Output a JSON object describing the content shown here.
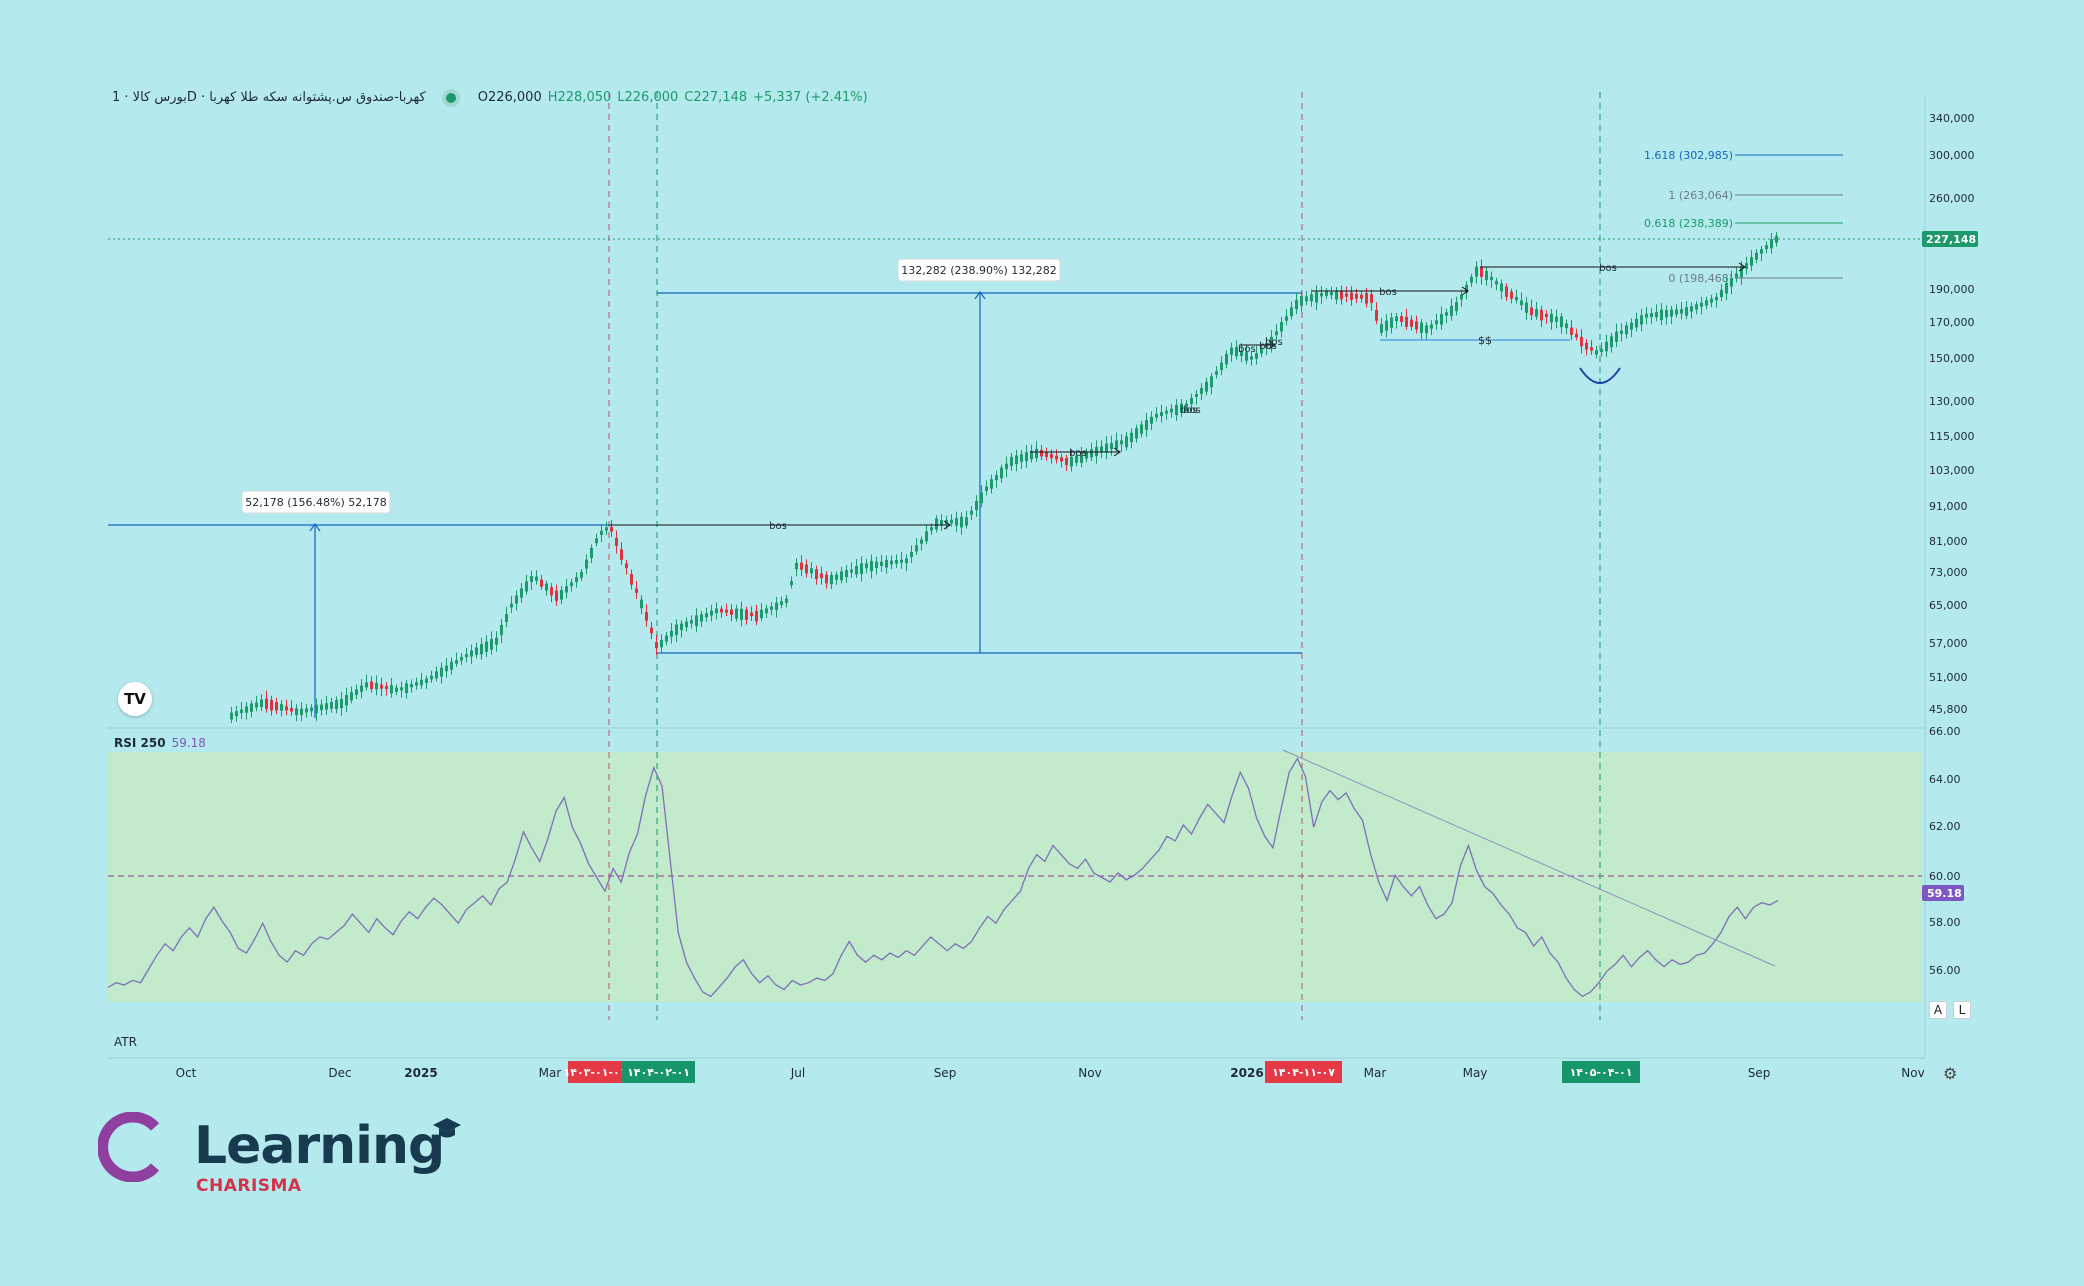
{
  "header": {
    "symbol": "بورس کالا · 1D · کهربا-صندوق س.پشتوانه سکه طلا کهربا",
    "open": "O226,000",
    "high": "H228,050",
    "low": "L226,000",
    "close": "C227,148",
    "change": "+5,337 (+2.41%)"
  },
  "price_axis": [
    "340,000",
    "300,000",
    "260,000",
    "220,000",
    "190,000",
    "170,000",
    "150,000",
    "130,000",
    "115,000",
    "103,000",
    "91,000",
    "81,000",
    "73,000",
    "65,000",
    "57,000",
    "51,000",
    "45,800"
  ],
  "last_price": "227,148",
  "fib": [
    {
      "label": "1.618 (302,985)",
      "color": "#1565c0"
    },
    {
      "label": "1 (263,064)",
      "color": "#6b7b86"
    },
    {
      "label": "0.618 (238,389)",
      "color": "#1d9a6c"
    },
    {
      "label": "0 (198,468)",
      "color": "#6b7b86"
    }
  ],
  "measures": [
    "52,178 (156.48%) 52,178",
    "132,282 (238.90%) 132,282"
  ],
  "annotations": {
    "bos": "bos",
    "ss": "$$"
  },
  "rsi": {
    "label": "RSI 250",
    "value": "59.18",
    "axis": [
      "66.00",
      "64.00",
      "62.00",
      "60.00",
      "58.00",
      "56.00"
    ],
    "series": [
      55.4,
      55.6,
      55.5,
      55.7,
      55.6,
      56.2,
      56.8,
      57.3,
      57.0,
      57.6,
      58.0,
      57.6,
      58.4,
      58.9,
      58.3,
      57.8,
      57.1,
      56.9,
      57.5,
      58.2,
      57.4,
      56.8,
      56.5,
      57.0,
      56.8,
      57.3,
      57.6,
      57.5,
      57.8,
      58.1,
      58.6,
      58.2,
      57.8,
      58.4,
      58.0,
      57.7,
      58.3,
      58.7,
      58.4,
      58.9,
      59.3,
      59.0,
      58.6,
      58.2,
      58.8,
      59.1,
      59.4,
      59.0,
      59.7,
      60.0,
      61.0,
      62.2,
      61.5,
      60.9,
      61.9,
      63.1,
      63.7,
      62.4,
      61.7,
      60.8,
      60.2,
      59.6,
      60.6,
      60.0,
      61.3,
      62.1,
      63.8,
      65.0,
      64.2,
      61.0,
      57.8,
      56.5,
      55.8,
      55.2,
      55.0,
      55.4,
      55.8,
      56.3,
      56.6,
      56.0,
      55.6,
      55.9,
      55.5,
      55.3,
      55.7,
      55.5,
      55.6,
      55.8,
      55.7,
      56.0,
      56.8,
      57.4,
      56.8,
      56.5,
      56.8,
      56.6,
      56.9,
      56.7,
      57.0,
      56.8,
      57.2,
      57.6,
      57.3,
      57.0,
      57.3,
      57.1,
      57.4,
      58.0,
      58.5,
      58.2,
      58.8,
      59.2,
      59.6,
      60.6,
      61.2,
      60.9,
      61.6,
      61.2,
      60.8,
      60.6,
      61.0,
      60.4,
      60.2,
      60.0,
      60.4,
      60.1,
      60.3,
      60.6,
      61.0,
      61.4,
      62.0,
      61.8,
      62.5,
      62.1,
      62.8,
      63.4,
      63.0,
      62.6,
      63.8,
      64.8,
      64.1,
      62.8,
      62.0,
      61.5,
      63.2,
      64.8,
      65.4,
      64.6,
      62.4,
      63.5,
      64.0,
      63.6,
      63.9,
      63.2,
      62.7,
      61.2,
      60.0,
      59.2,
      60.3,
      59.8,
      59.4,
      59.8,
      59.0,
      58.4,
      58.6,
      59.1,
      60.7,
      61.6,
      60.5,
      59.8,
      59.5,
      59.0,
      58.6,
      58.0,
      57.8,
      57.2,
      57.6,
      56.9,
      56.5,
      55.8,
      55.3,
      55.0,
      55.2,
      55.6,
      56.1,
      56.4,
      56.8,
      56.3,
      56.7,
      57.0,
      56.6,
      56.3,
      56.6,
      56.4,
      56.5,
      56.8,
      56.9,
      57.3,
      57.8,
      58.5,
      58.9,
      58.4,
      58.9,
      59.1,
      59.0,
      59.2
    ]
  },
  "atr_label": "ATR",
  "time_axis": [
    {
      "label": "Oct",
      "bold": false
    },
    {
      "label": "Dec",
      "bold": false
    },
    {
      "label": "2025",
      "bold": true
    },
    {
      "label": "Mar",
      "bold": false
    },
    {
      "label": "Jul",
      "bold": false
    },
    {
      "label": "Sep",
      "bold": false
    },
    {
      "label": "Nov",
      "bold": false
    },
    {
      "label": "2026",
      "bold": true
    },
    {
      "label": "Mar",
      "bold": false
    },
    {
      "label": "May",
      "bold": false
    },
    {
      "label": "Sep",
      "bold": false
    },
    {
      "label": "Nov",
      "bold": false
    }
  ],
  "date_tags": [
    {
      "label": "۱۴۰۳-۰۱-۰۱",
      "color": "#e53945"
    },
    {
      "label": "۱۴۰۴-۰۲-۰۱",
      "color": "#17956b"
    },
    {
      "label": "۱۴۰۴-۱۱-۰۷",
      "color": "#e53945"
    },
    {
      "label": "۱۴۰۵-۰۴-۰۱",
      "color": "#17956b"
    }
  ],
  "buttons": {
    "a": "A",
    "l": "L"
  },
  "brand": {
    "name": "Learning",
    "sub": "CHARISMA"
  },
  "colors": {
    "up": "#1d9a6c",
    "down": "#e0313f",
    "rsi_line": "#7e6fb8",
    "rsi_band": "#c2ebcc",
    "measure": "#1565c0"
  }
}
